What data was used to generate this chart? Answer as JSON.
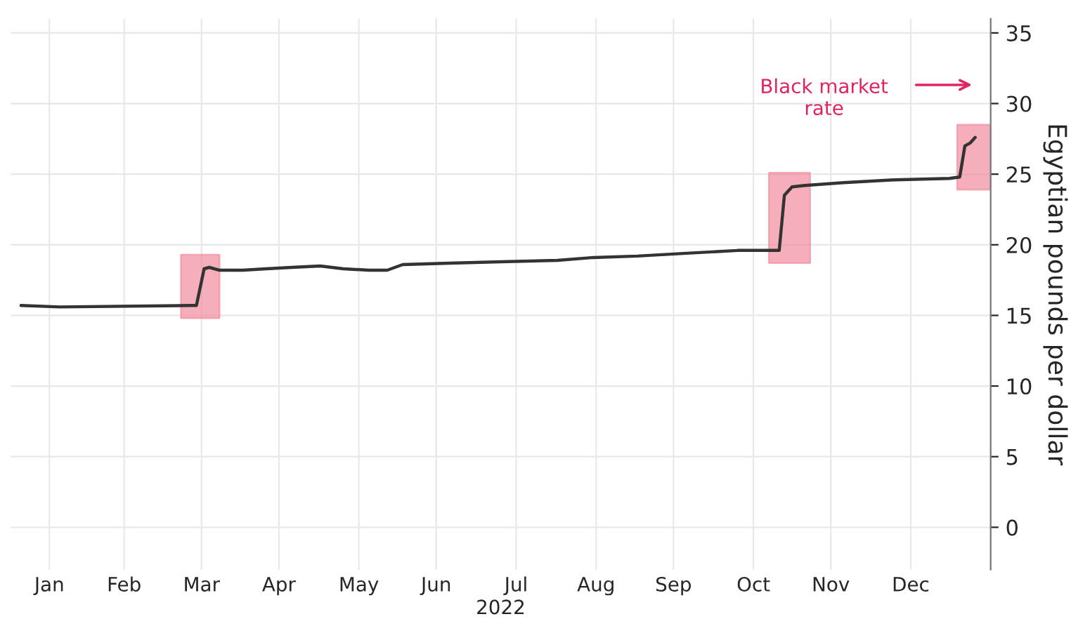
{
  "chart_data": {
    "type": "line",
    "xlabel": "2022",
    "ylabel": "Egyptian pounds per dollar",
    "x": [
      "2022-01-05",
      "2022-01-20",
      "2022-03-12",
      "2022-03-14",
      "2022-03-17",
      "2022-03-19",
      "2022-03-23",
      "2022-04-01",
      "2022-04-10",
      "2022-04-20",
      "2022-05-01",
      "2022-05-10",
      "2022-05-20",
      "2022-05-27",
      "2022-06-02",
      "2022-06-20",
      "2022-07-10",
      "2022-08-01",
      "2022-08-15",
      "2022-09-01",
      "2022-09-20",
      "2022-10-10",
      "2022-10-26",
      "2022-10-28",
      "2022-10-31",
      "2022-11-05",
      "2022-11-20",
      "2022-12-10",
      "2022-12-31",
      "2023-01-04",
      "2023-01-06",
      "2023-01-08",
      "2023-01-10"
    ],
    "series": [
      {
        "color": "#333333",
        "values": [
          15.7,
          15.6,
          15.7,
          15.7,
          18.3,
          18.4,
          18.2,
          18.2,
          18.3,
          18.4,
          18.5,
          18.3,
          18.2,
          18.2,
          18.6,
          18.7,
          18.8,
          18.9,
          19.1,
          19.2,
          19.4,
          19.6,
          19.6,
          23.5,
          24.1,
          24.2,
          24.4,
          24.6,
          24.7,
          24.8,
          27.0,
          27.2,
          27.6
        ]
      }
    ],
    "xlim": [
      "2022-01-01",
      "2023-01-16"
    ],
    "xticks": [
      {
        "value": "2022-01-16",
        "label": "Jan"
      },
      {
        "value": "2022-02-14",
        "label": "Feb"
      },
      {
        "value": "2022-03-16",
        "label": "Mar"
      },
      {
        "value": "2022-04-15",
        "label": "Apr"
      },
      {
        "value": "2022-05-16",
        "label": "May"
      },
      {
        "value": "2022-06-15",
        "label": "Jun"
      },
      {
        "value": "2022-07-16",
        "label": "Jul"
      },
      {
        "value": "2022-08-16",
        "label": "Aug"
      },
      {
        "value": "2022-09-15",
        "label": "Sep"
      },
      {
        "value": "2022-10-16",
        "label": "Oct"
      },
      {
        "value": "2022-11-15",
        "label": "Nov"
      },
      {
        "value": "2022-12-16",
        "label": "Dec"
      }
    ],
    "ylim": [
      -3,
      36
    ],
    "yticks": [
      0,
      5,
      10,
      15,
      20,
      25,
      30,
      35
    ],
    "grid": true,
    "bands": [
      {
        "axis": "x",
        "from": "2022-03-08",
        "to": "2022-03-23",
        "color": "#f28c9e"
      },
      {
        "axis": "x",
        "from": "2022-10-22",
        "to": "2022-11-07",
        "color": "#f28c9e"
      },
      {
        "axis": "x",
        "from": "2023-01-03",
        "to": "2023-01-16",
        "color": "#f28c9e"
      }
    ],
    "annotations": [
      "Black market\nrate"
    ]
  }
}
